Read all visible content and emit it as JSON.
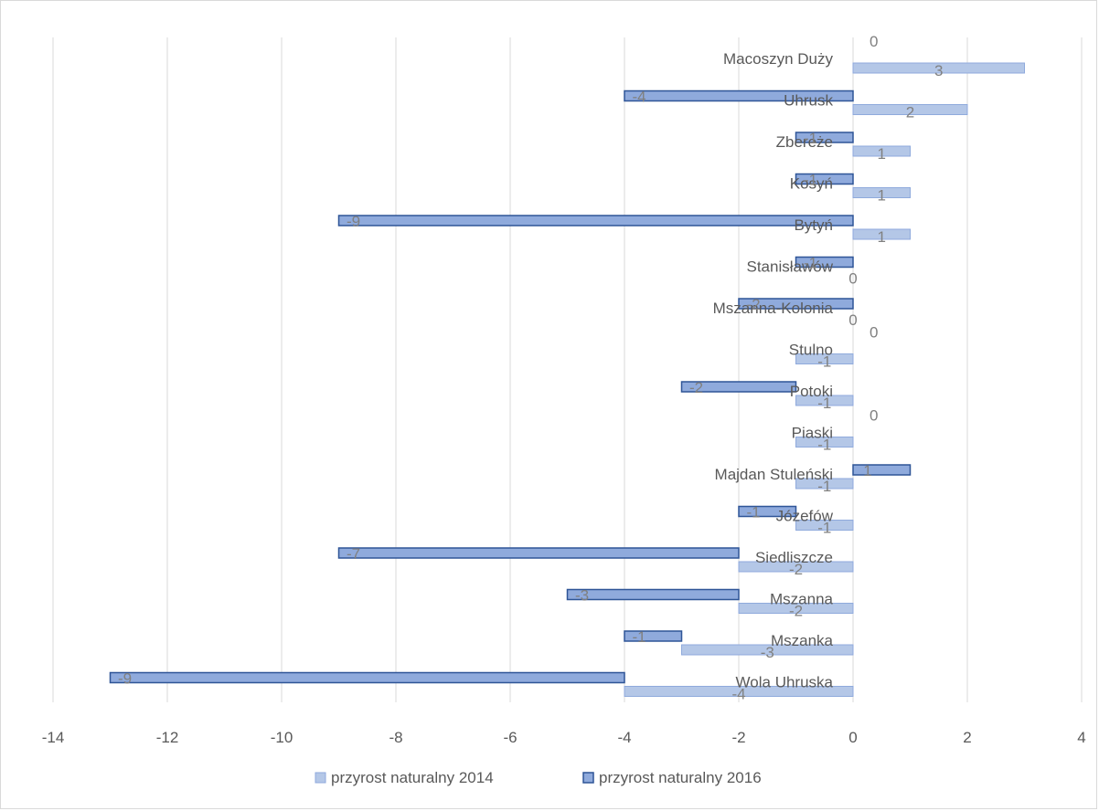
{
  "chart_data": {
    "type": "bar",
    "orientation": "horizontal",
    "stacked": true,
    "categories": [
      "Macoszyn Duży",
      "Uhrusk",
      "Zbereże",
      "Kosyń",
      "Bytyń",
      "Stanisławów",
      "Mszanna-Kolonia",
      "Stulno",
      "Potoki",
      "Piaski",
      "Majdan Stuleński",
      "Józefów",
      "Siedliszcze",
      "Mszanna",
      "Mszanka",
      "Wola Uhruska"
    ],
    "series": [
      {
        "name": "przyrost naturalny 2014",
        "color": "#b4c7e7",
        "values": [
          3,
          2,
          1,
          1,
          1,
          0,
          0,
          -1,
          -1,
          -1,
          -1,
          -1,
          -2,
          -2,
          -3,
          -4
        ]
      },
      {
        "name": "przyrost naturalny 2016",
        "color": "#8faadc",
        "values": [
          0,
          -4,
          -1,
          -1,
          -9,
          -1,
          -2,
          0,
          -2,
          0,
          1,
          -1,
          -7,
          -3,
          -1,
          -9
        ]
      }
    ],
    "xlim": [
      -14,
      4
    ],
    "xticks": [
      -14,
      -12,
      -10,
      -8,
      -6,
      -4,
      -2,
      0,
      2,
      4
    ],
    "xtick_labels": [
      "-14",
      "-12",
      "-10",
      "-8",
      "-6",
      "-4",
      "-2",
      "0",
      "2",
      "4"
    ],
    "grid": true,
    "legend_position": "bottom",
    "title": "",
    "xlabel": "",
    "ylabel": ""
  }
}
